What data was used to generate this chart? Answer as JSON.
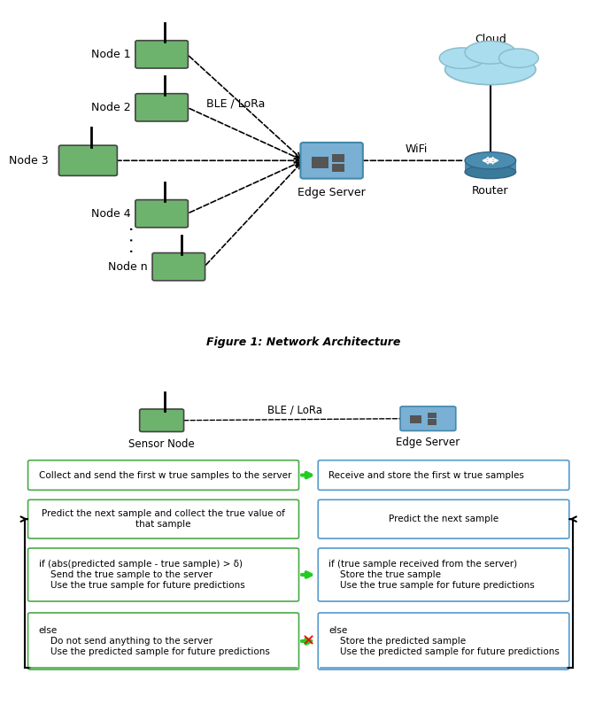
{
  "fig_width": 6.4,
  "fig_height": 7.93,
  "fig1_caption": "Figure 1: Network Architecture",
  "ble_lora_label": "BLE / LoRa",
  "wifi_label": "WiFi",
  "node_labels": [
    "Node 1",
    "Node 2",
    "Node 3",
    "Node 4",
    "Node n"
  ],
  "edge_server_label": "Edge Server",
  "router_label": "Router",
  "cloud_label": "Cloud",
  "sensor_node_label": "Sensor Node",
  "fig2_ble_label": "BLE / LoRa",
  "fig2_edge_label": "Edge Server",
  "box_left_1": "Collect and send the first w true samples to the server",
  "box_left_2": "Predict the next sample and collect the true value of\nthat sample",
  "box_left_3": "if (abs(predicted sample - true sample) > δ)\n    Send the true sample to the server\n    Use the true sample for future predictions",
  "box_left_4": "else\n    Do not send anything to the server\n    Use the predicted sample for future predictions",
  "box_right_1": "Receive and store the first w true samples",
  "box_right_2": "Predict the next sample",
  "box_right_3": "if (true sample received from the server)\n    Store the true sample\n    Use the true sample for future predictions",
  "box_right_4": "else\n    Store the predicted sample\n    Use the predicted sample for future predictions",
  "node_fill": "#6db36d",
  "node_edge": "#444444",
  "edge_server_fill": "#7ab0d4",
  "edge_server_edge": "#4488aa",
  "router_top_fill": "#4a8db0",
  "router_bot_fill": "#3a7a9a",
  "router_edge": "#336688",
  "cloud_fill": "#aaddee",
  "cloud_edge": "#88bbcc",
  "dark_square_fill": "#555555",
  "green_arrow": "#22cc22",
  "green_box_edge": "#4aaa4a",
  "blue_box_edge": "#5599cc"
}
